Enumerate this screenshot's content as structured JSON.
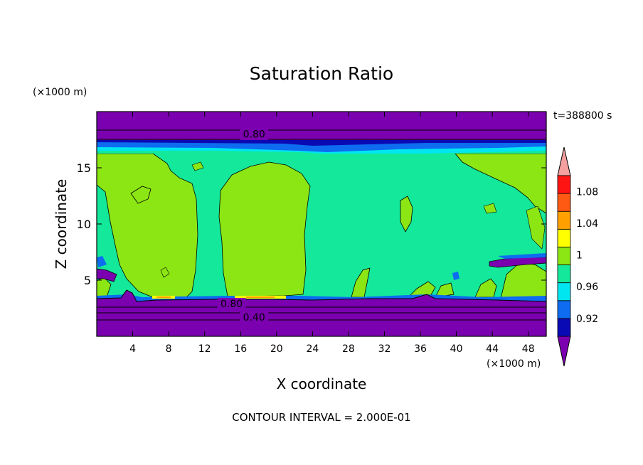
{
  "chart_data": {
    "type": "heatmap",
    "title": "Saturation Ratio",
    "xlabel": "X coordinate",
    "ylabel": "Z coordinate",
    "x_units": "(×1000 m)",
    "y_units": "(×1000 m)",
    "time_label": "t=388800 s",
    "footer": "CONTOUR INTERVAL = 2.000E-01",
    "xlim": [
      0,
      50
    ],
    "ylim": [
      0,
      20
    ],
    "x_ticks": [
      4,
      8,
      12,
      16,
      20,
      24,
      28,
      32,
      36,
      40,
      44,
      48
    ],
    "x_tick_labels": [
      "4",
      "8",
      "12",
      "16",
      "20",
      "24",
      "28",
      "32",
      "36",
      "40",
      "44",
      "48"
    ],
    "y_ticks": [
      5,
      10,
      15
    ],
    "y_tick_labels": [
      "5",
      "10",
      "15"
    ],
    "contour_labels": [
      {
        "text": "0.80",
        "x": 17.5,
        "z": 18.0
      },
      {
        "text": "0.80",
        "x": 15.0,
        "z": 2.9
      },
      {
        "text": "0.40",
        "x": 17.5,
        "z": 1.7
      }
    ],
    "colorbar": {
      "levels": [
        0.92,
        0.94,
        0.96,
        0.98,
        1.0,
        1.02,
        1.04,
        1.06,
        1.08,
        1.1
      ],
      "tick_values": [
        0.92,
        0.96,
        1.0,
        1.04,
        1.08
      ],
      "tick_labels": [
        "0.92",
        "0.96",
        "1",
        "1.04",
        "1.08"
      ],
      "colors": [
        "#7b00b0",
        "#0a0ab4",
        "#0d6cf0",
        "#00e6f0",
        "#14e89a",
        "#8ce614",
        "#ffff00",
        "#ffa000",
        "#ff5a14",
        "#ff1414",
        "#f4a0a0"
      ],
      "extend": "both"
    }
  },
  "colors": {
    "purple": "#7b00b0",
    "dark_blue": "#0a0ab4",
    "blue": "#0d6cf0",
    "cyan": "#00e6f0",
    "sea_green": "#14e89a",
    "lime": "#8ce614",
    "yellow": "#ffff00",
    "orange": "#ffa000",
    "red": "#ff1414",
    "pink": "#f4a0a0"
  }
}
